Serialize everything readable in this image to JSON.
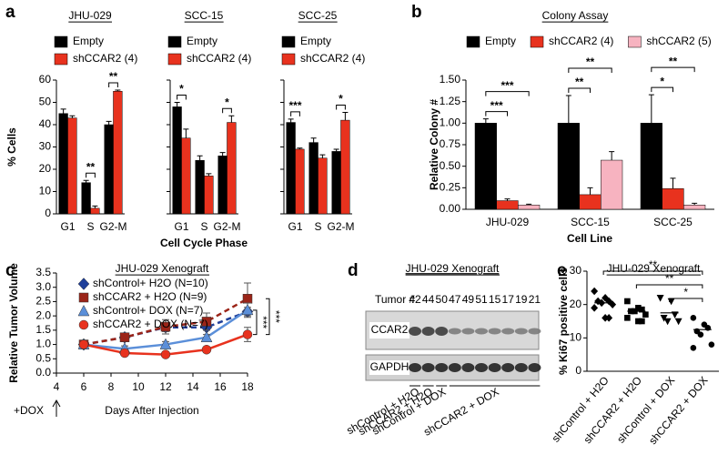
{
  "chart_data": [
    {
      "type": "bar",
      "panel": "a",
      "title": "JHU-029",
      "ylabel": "% Cells",
      "categories": [
        "G1",
        "S",
        "G2-M"
      ],
      "ylim": [
        0,
        60
      ],
      "yticks": [
        0,
        10,
        20,
        30,
        40,
        50,
        60
      ],
      "series": [
        {
          "name": "Empty",
          "color": "#000000",
          "values": [
            45,
            14,
            40
          ],
          "errors": [
            2,
            1,
            1.5
          ]
        },
        {
          "name": "shCCAR2 (4)",
          "color": "#e8321e",
          "values": [
            43,
            2.5,
            55
          ],
          "errors": [
            1,
            1,
            0.5
          ]
        }
      ],
      "annotations": [
        {
          "text": "**",
          "category": "S"
        },
        {
          "text": "**",
          "category": "G2-M"
        }
      ]
    },
    {
      "type": "bar",
      "title": "SCC-15",
      "xlabel": "Cell Cycle Phase",
      "categories": [
        "G1",
        "S",
        "G2-M"
      ],
      "ylim": [
        0,
        60
      ],
      "yticks": [
        0,
        10,
        20,
        30,
        40,
        50,
        60
      ],
      "ytick_labels": false,
      "series": [
        {
          "name": "Empty",
          "color": "#000000",
          "values": [
            48,
            24,
            26
          ],
          "errors": [
            2,
            2,
            1.5
          ]
        },
        {
          "name": "shCCAR2 (4)",
          "color": "#e8321e",
          "values": [
            34,
            17,
            41
          ],
          "errors": [
            4,
            1,
            3
          ]
        }
      ],
      "annotations": [
        {
          "text": "*",
          "category": "G1"
        },
        {
          "text": "*",
          "category": "G2-M"
        }
      ]
    },
    {
      "type": "bar",
      "title": "SCC-25",
      "categories": [
        "G1",
        "S",
        "G2-M"
      ],
      "ylim": [
        0,
        60
      ],
      "yticks": [
        0,
        10,
        20,
        30,
        40,
        50,
        60
      ],
      "ytick_labels": false,
      "series": [
        {
          "name": "Empty",
          "color": "#000000",
          "values": [
            41,
            32,
            28
          ],
          "errors": [
            1.5,
            2,
            1
          ]
        },
        {
          "name": "shCCAR2 (4)",
          "color": "#e8321e",
          "values": [
            29,
            25,
            42
          ],
          "errors": [
            0.5,
            1.5,
            3.5
          ]
        }
      ],
      "annotations": [
        {
          "text": "***",
          "category": "G1"
        },
        {
          "text": "*",
          "category": "G2-M"
        }
      ]
    },
    {
      "type": "bar",
      "panel": "b",
      "title": "Colony Assay",
      "ylabel": "Relative Colony #",
      "xlabel": "Cell Line",
      "categories": [
        "JHU-029",
        "SCC-15",
        "SCC-25"
      ],
      "ylim": [
        0,
        1.5
      ],
      "yticks": [
        {
          "value": 0,
          "label": "0.00"
        },
        0.25,
        {
          "value": 0.5,
          "label": "0.50"
        },
        0.75,
        {
          "value": 1,
          "label": "1.00"
        },
        1.25,
        {
          "value": 1.5,
          "label": "1.50"
        }
      ],
      "series": [
        {
          "name": "Empty",
          "color": "#000000",
          "values": [
            1.0,
            1.0,
            1.0
          ],
          "errors": [
            0.05,
            0.32,
            0.33
          ]
        },
        {
          "name": "shCCAR2 (4)",
          "color": "#e8321e",
          "values": [
            0.1,
            0.17,
            0.24
          ],
          "errors": [
            0.02,
            0.08,
            0.12
          ]
        },
        {
          "name": "shCCAR2 (5)",
          "color": "#f7b3c0",
          "values": [
            0.05,
            0.57,
            0.05
          ],
          "errors": [
            0.01,
            0.1,
            0.02
          ]
        }
      ],
      "annotations": [
        {
          "text": "***",
          "category": "JHU-029",
          "to": "shCCAR2 (4)"
        },
        {
          "text": "***",
          "category": "JHU-029",
          "to": "shCCAR2 (5)"
        },
        {
          "text": "**",
          "category": "SCC-15",
          "to": "shCCAR2 (4)"
        },
        {
          "text": "**",
          "category": "SCC-15",
          "to": "shCCAR2 (5)"
        },
        {
          "text": "*",
          "category": "SCC-25",
          "to": "shCCAR2 (4)"
        },
        {
          "text": "**",
          "category": "SCC-25",
          "to": "shCCAR2 (5)"
        }
      ]
    },
    {
      "type": "line",
      "panel": "c",
      "title": "JHU-029 Xenograft",
      "ylabel": "Relative Tumor Volume",
      "xlabel": "Days After Injection",
      "x": [
        6,
        9,
        12,
        15,
        18
      ],
      "xlim": [
        4,
        18
      ],
      "xticks": [
        4,
        6,
        8,
        10,
        12,
        14,
        16,
        18
      ],
      "ylim": [
        0,
        3.5
      ],
      "yticks": [
        {
          "value": 0,
          "label": "0.0"
        },
        0.5,
        {
          "value": 1,
          "label": "1.0"
        },
        1.5,
        {
          "value": 2,
          "label": "2.0"
        },
        2.5,
        {
          "value": 3,
          "label": "3.0"
        },
        3.5
      ],
      "series": [
        {
          "name": "shControl+ H2O (N=10)",
          "color": "#1f3f99",
          "marker": "diamond",
          "line_style": "dashed",
          "values": [
            1,
            1.25,
            1.6,
            1.6,
            2.15
          ],
          "errors": [
            0.05,
            0.1,
            0.15,
            0.1,
            0.15
          ]
        },
        {
          "name": "shCCAR2 + H2O (N=9)",
          "color": "#9b2418",
          "marker": "square",
          "line_style": "dashed",
          "values": [
            1,
            1.25,
            1.62,
            1.8,
            2.6
          ],
          "errors": [
            0.05,
            0.15,
            0.25,
            0.3,
            0.55
          ]
        },
        {
          "name": "shControl+ DOX (N=7)",
          "color": "#5b8fd9",
          "marker": "triangle",
          "line_style": "solid",
          "values": [
            1,
            0.85,
            1.0,
            1.25,
            2.2
          ],
          "errors": [
            0.05,
            0.1,
            0.1,
            0.1,
            0.25
          ]
        },
        {
          "name": "shCCAR2 + DOX (N=7)",
          "color": "#e8321e",
          "marker": "circle",
          "line_style": "solid",
          "values": [
            1,
            0.7,
            0.65,
            0.82,
            1.35
          ],
          "errors": [
            0.05,
            0.08,
            0.08,
            0.1,
            0.25
          ]
        }
      ],
      "annotations": [
        {
          "text": "***",
          "from": "shControl+ DOX (N=7)",
          "to": "shCCAR2 + DOX (N=7)"
        },
        {
          "text": "***",
          "from": "shCCAR2 + H2O (N=9)",
          "to": "shCCAR2 + DOX (N=7)"
        }
      ],
      "event": {
        "text": "+DOX",
        "x": 4
      }
    },
    {
      "type": "strip",
      "panel": "e",
      "title": "JHU-029 Xenograft",
      "ylabel": "% Ki67 positive cells",
      "categories": [
        "shControl + H2O",
        "shCCAR2 + H2O",
        "shControl + DOX",
        "shCCAR2 + DOX"
      ],
      "markers": [
        "diamond",
        "square",
        "triangle-down",
        "circle"
      ],
      "color": "#000000",
      "ylim": [
        0,
        30
      ],
      "yticks": [
        0,
        10,
        20,
        30
      ],
      "values": [
        [
          24,
          22,
          21,
          21,
          20.5,
          20,
          19,
          16,
          16
        ],
        [
          21,
          19,
          18.5,
          18,
          18,
          17,
          16,
          15,
          15
        ],
        [
          22,
          21,
          17,
          16,
          15,
          15
        ],
        [
          16,
          14,
          13,
          12,
          11,
          8,
          7
        ]
      ],
      "means": [
        20.5,
        18,
        17.5,
        12.5
      ],
      "annotations": [
        {
          "text": "**",
          "from": "shControl + H2O",
          "to": "shCCAR2 + DOX"
        },
        {
          "text": "**",
          "from": "shCCAR2 + H2O",
          "to": "shCCAR2 + DOX"
        },
        {
          "text": "*",
          "from": "shControl + DOX",
          "to": "shCCAR2 + DOX"
        }
      ]
    }
  ],
  "blot": {
    "panel": "d",
    "title": "JHU-029 Xenograft",
    "tumor_label": "Tumor #",
    "tumors": [
      "42",
      "44",
      "50",
      "47",
      "49",
      "51",
      "15",
      "17",
      "19",
      "21"
    ],
    "bands": [
      "CCAR2",
      "GAPDH"
    ],
    "groups": [
      "shControl + H2O",
      "shCCAR2 + H2O",
      "shControl + DOX",
      "shCCAR2 + DOX"
    ]
  }
}
